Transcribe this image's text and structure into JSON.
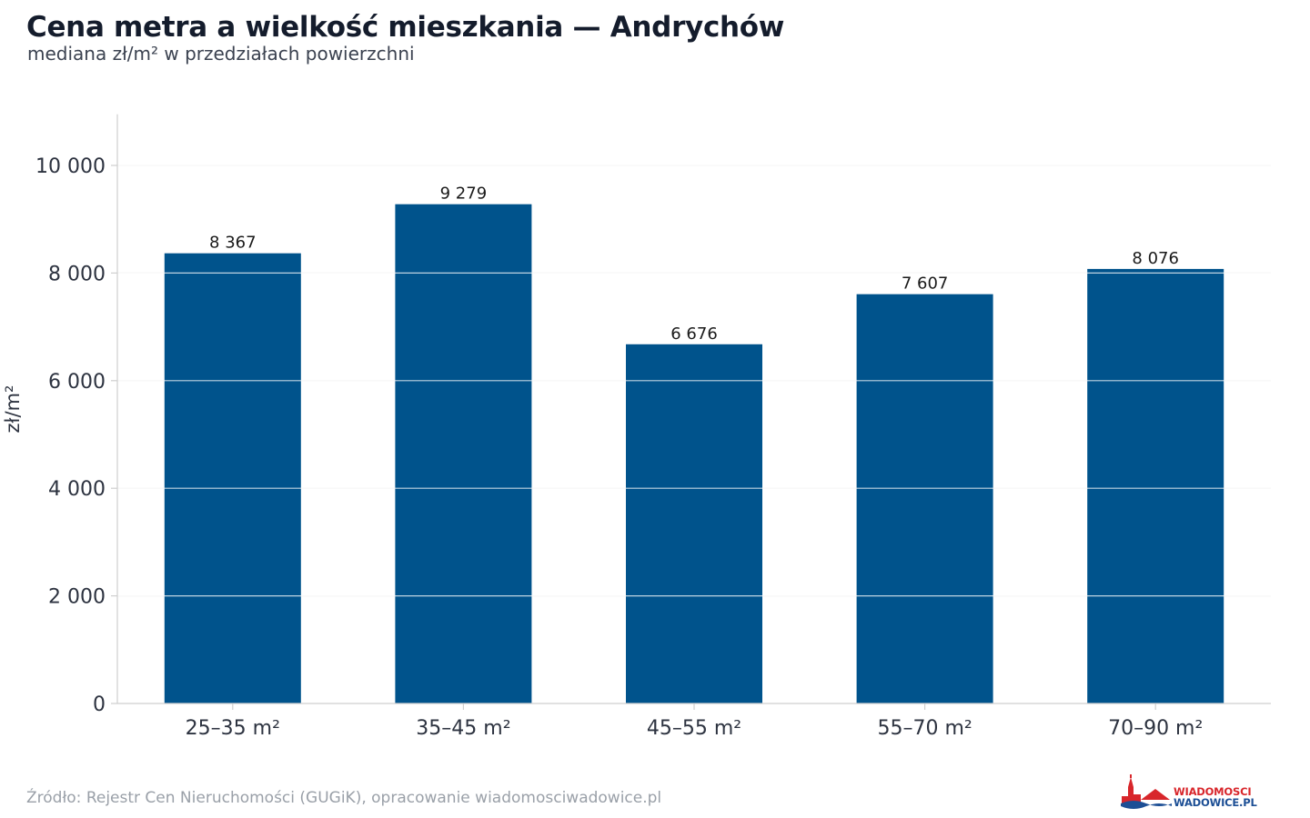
{
  "header": {
    "title": "Cena metra a wielkość mieszkania — Andrychów",
    "subtitle": "mediana zł/m² w przedziałach powierzchni"
  },
  "footer": {
    "source": "Źródło: Rejestr Cen Nieruchomości (GUGiK), opracowanie wiadomosciwadowice.pl",
    "logo_line1": "WIADOMOSCI",
    "logo_line2": "WADOWICE.PL"
  },
  "colors": {
    "bar": "#00538c",
    "grid": "#e6e6e6",
    "axis": "#cfcfcf",
    "text": "#2d3340",
    "logo_red": "#d8262b",
    "logo_blue": "#1d4f95"
  },
  "chart_data": {
    "type": "bar",
    "title": "Cena metra a wielkość mieszkania — Andrychów",
    "subtitle": "mediana zł/m² w przedziałach powierzchni",
    "xlabel": "",
    "ylabel": "zł/m²",
    "categories": [
      "25–35 m²",
      "35–45 m²",
      "45–55 m²",
      "55–70 m²",
      "70–90 m²"
    ],
    "values": [
      8367,
      9279,
      6676,
      7607,
      8076
    ],
    "value_labels": [
      "8 367",
      "9 279",
      "6 676",
      "7 607",
      "8 076"
    ],
    "ylim": [
      0,
      10950
    ],
    "yticks": [
      0,
      2000,
      4000,
      6000,
      8000,
      10000
    ],
    "ytick_labels": [
      "0",
      "2 000",
      "4 000",
      "6 000",
      "8 000",
      "10 000"
    ],
    "grid": true,
    "legend": "none"
  }
}
